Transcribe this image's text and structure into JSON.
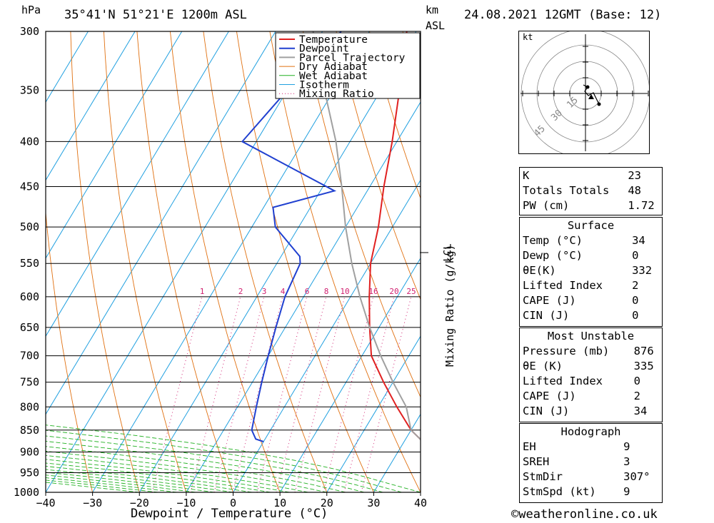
{
  "header": {
    "unit_left": "hPa",
    "location": "35°41'N  51°21'E  1200m  ASL",
    "km_label": "km",
    "asl_label": "ASL",
    "datetime": "24.08.2021  12GMT  (Base: 12)"
  },
  "axes": {
    "pressure_ticks": [
      "300",
      "350",
      "400",
      "450",
      "500",
      "550",
      "600",
      "650",
      "700",
      "750",
      "800",
      "850",
      "900",
      "950",
      "1000"
    ],
    "temp_ticks": [
      "-40",
      "-30",
      "-20",
      "-10",
      "0",
      "10",
      "20",
      "30",
      "40"
    ],
    "xlabel": "Dewpoint / Temperature (°C)",
    "mixing_label": "Mixing Ratio (g/kg)",
    "mixing_ticks": [
      "1",
      "2",
      "3",
      "4",
      "6",
      "8",
      "10",
      "16",
      "20",
      "25"
    ],
    "lcl_label": "LCL"
  },
  "legend": [
    {
      "label": "Temperature",
      "color": "#e02020"
    },
    {
      "label": "Dewpoint",
      "color": "#2040d0"
    },
    {
      "label": "Parcel Trajectory",
      "color": "#a0a0a0"
    },
    {
      "label": "Dry Adiabat",
      "color": "#e07010"
    },
    {
      "label": "Wet Adiabat",
      "color": "#20b020"
    },
    {
      "label": "Isotherm",
      "color": "#20a0e0"
    },
    {
      "label": "Mixing Ratio",
      "color": "#d02070"
    }
  ],
  "hodograph": {
    "unit": "kt",
    "ring_labels": [
      "15",
      "30",
      "45"
    ]
  },
  "indices": {
    "rows": [
      {
        "k": "K",
        "v": "23"
      },
      {
        "k": "Totals Totals",
        "v": "48"
      },
      {
        "k": "PW (cm)",
        "v": "1.72"
      }
    ]
  },
  "surface": {
    "title": "Surface",
    "rows": [
      {
        "k": "Temp (°C)",
        "v": "34"
      },
      {
        "k": "Dewp (°C)",
        "v": "0"
      },
      {
        "k": "θE(K)",
        "v": "332"
      },
      {
        "k": "Lifted Index",
        "v": "2"
      },
      {
        "k": "CAPE (J)",
        "v": "0"
      },
      {
        "k": "CIN (J)",
        "v": "0"
      }
    ]
  },
  "most_unstable": {
    "title": "Most Unstable",
    "rows": [
      {
        "k": "Pressure (mb)",
        "v": "876"
      },
      {
        "k": "θE (K)",
        "v": "335"
      },
      {
        "k": "Lifted Index",
        "v": "0"
      },
      {
        "k": "CAPE (J)",
        "v": "2"
      },
      {
        "k": "CIN (J)",
        "v": "34"
      }
    ]
  },
  "hodograph_stats": {
    "title": "Hodograph",
    "rows": [
      {
        "k": "EH",
        "v": "9"
      },
      {
        "k": "SREH",
        "v": "3"
      },
      {
        "k": "StmDir",
        "v": "307°"
      },
      {
        "k": "StmSpd (kt)",
        "v": "9"
      }
    ]
  },
  "footer": {
    "copyright": "©weatheronline.co.uk"
  },
  "chart_data": {
    "type": "line",
    "title": "35°41'N 51°21'E 1200m ASL",
    "xlabel": "Dewpoint / Temperature (°C)",
    "ylabel": "hPa",
    "xlim": [
      -40,
      40
    ],
    "ylim": [
      1000,
      300
    ],
    "y_scale": "log",
    "series": [
      {
        "name": "Temperature",
        "color": "#e02020",
        "points": [
          [
            34,
            876
          ],
          [
            30,
            850
          ],
          [
            24,
            800
          ],
          [
            18,
            750
          ],
          [
            12,
            700
          ],
          [
            8,
            650
          ],
          [
            4,
            600
          ],
          [
            0,
            550
          ],
          [
            -3,
            500
          ],
          [
            -7,
            450
          ],
          [
            -11,
            400
          ],
          [
            -16,
            350
          ],
          [
            -22,
            300
          ]
        ]
      },
      {
        "name": "Dewpoint",
        "color": "#2040d0",
        "points": [
          [
            0,
            876
          ],
          [
            -2,
            870
          ],
          [
            -4,
            850
          ],
          [
            -6,
            800
          ],
          [
            -8,
            750
          ],
          [
            -10,
            700
          ],
          [
            -12,
            650
          ],
          [
            -14,
            600
          ],
          [
            -15,
            550
          ],
          [
            -16,
            540
          ],
          [
            -25,
            500
          ],
          [
            -28,
            475
          ],
          [
            -17,
            455
          ],
          [
            -43,
            400
          ],
          [
            -40,
            350
          ],
          [
            -36,
            300
          ]
        ]
      },
      {
        "name": "Parcel Trajectory",
        "color": "#a0a0a0",
        "points": [
          [
            34,
            876
          ],
          [
            30,
            850
          ],
          [
            26,
            800
          ],
          [
            20,
            750
          ],
          [
            14,
            700
          ],
          [
            8,
            650
          ],
          [
            2,
            600
          ],
          [
            -4,
            550
          ],
          [
            -10,
            500
          ],
          [
            -16,
            450
          ],
          [
            -23,
            400
          ],
          [
            -32,
            350
          ],
          [
            -42,
            300
          ]
        ]
      }
    ],
    "mixing_ratio_labels": [
      1,
      2,
      3,
      4,
      6,
      8,
      10,
      16,
      20,
      25
    ]
  }
}
